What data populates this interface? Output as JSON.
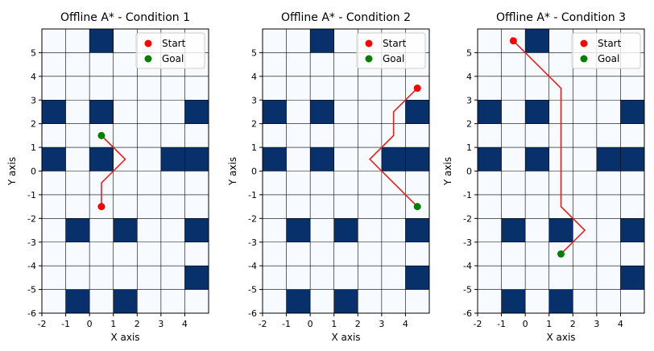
{
  "chart_data": [
    {
      "type": "heatmap",
      "title": "Offline A* - Condition 1",
      "xlabel": "X axis",
      "ylabel": "Y axis",
      "xlim": [
        -2,
        5
      ],
      "ylim": [
        -6,
        6
      ],
      "xticks": [
        "-2",
        "-1",
        "0",
        "1",
        "2",
        "3",
        "4"
      ],
      "yticks": [
        "-6",
        "-5",
        "-4",
        "-3",
        "-2",
        "-1",
        "0",
        "1",
        "2",
        "3",
        "4",
        "5"
      ],
      "obstacles": [
        [
          0,
          5
        ],
        [
          -2,
          2
        ],
        [
          0,
          2
        ],
        [
          4,
          2
        ],
        [
          -2,
          0
        ],
        [
          0,
          0
        ],
        [
          3,
          0
        ],
        [
          4,
          0
        ],
        [
          -1,
          -3
        ],
        [
          1,
          -3
        ],
        [
          4,
          -3
        ],
        [
          4,
          -5
        ],
        [
          -1,
          -6
        ],
        [
          1,
          -6
        ]
      ],
      "path": [
        [
          0.5,
          -1.5
        ],
        [
          0.5,
          -0.5
        ],
        [
          1.5,
          0.5
        ],
        [
          0.5,
          1.5
        ]
      ],
      "start": [
        0.5,
        -1.5
      ],
      "goal": [
        0.5,
        1.5
      ],
      "legend": [
        "Start",
        "Goal"
      ],
      "legend_position": "top-right",
      "grid": true
    },
    {
      "type": "heatmap",
      "title": "Offline A* - Condition 2",
      "xlabel": "X axis",
      "ylabel": "Y axis",
      "xlim": [
        -2,
        5
      ],
      "ylim": [
        -6,
        6
      ],
      "xticks": [
        "-2",
        "-1",
        "0",
        "1",
        "2",
        "3",
        "4"
      ],
      "yticks": [
        "-6",
        "-5",
        "-4",
        "-3",
        "-2",
        "-1",
        "0",
        "1",
        "2",
        "3",
        "4",
        "5"
      ],
      "obstacles": [
        [
          0,
          5
        ],
        [
          -2,
          2
        ],
        [
          0,
          2
        ],
        [
          4,
          2
        ],
        [
          -2,
          0
        ],
        [
          0,
          0
        ],
        [
          3,
          0
        ],
        [
          4,
          0
        ],
        [
          -1,
          -3
        ],
        [
          1,
          -3
        ],
        [
          4,
          -3
        ],
        [
          4,
          -5
        ],
        [
          -1,
          -6
        ],
        [
          1,
          -6
        ]
      ],
      "path": [
        [
          4.5,
          3.5
        ],
        [
          3.5,
          2.5
        ],
        [
          3.5,
          1.5
        ],
        [
          2.5,
          0.5
        ],
        [
          3.5,
          -0.5
        ],
        [
          4.5,
          -1.5
        ]
      ],
      "start": [
        4.5,
        3.5
      ],
      "goal": [
        4.5,
        -1.5
      ],
      "legend": [
        "Start",
        "Goal"
      ],
      "legend_position": "top-right",
      "grid": true
    },
    {
      "type": "heatmap",
      "title": "Offline A* - Condition 3",
      "xlabel": "X axis",
      "ylabel": "Y axis",
      "xlim": [
        -2,
        5
      ],
      "ylim": [
        -6,
        6
      ],
      "xticks": [
        "-2",
        "-1",
        "0",
        "1",
        "2",
        "3",
        "4"
      ],
      "yticks": [
        "-6",
        "-5",
        "-4",
        "-3",
        "-2",
        "-1",
        "0",
        "1",
        "2",
        "3",
        "4",
        "5"
      ],
      "obstacles": [
        [
          0,
          5
        ],
        [
          -2,
          2
        ],
        [
          0,
          2
        ],
        [
          4,
          2
        ],
        [
          -2,
          0
        ],
        [
          0,
          0
        ],
        [
          3,
          0
        ],
        [
          4,
          0
        ],
        [
          -1,
          -3
        ],
        [
          1,
          -3
        ],
        [
          4,
          -3
        ],
        [
          4,
          -5
        ],
        [
          -1,
          -6
        ],
        [
          1,
          -6
        ]
      ],
      "path": [
        [
          -0.5,
          5.5
        ],
        [
          1.5,
          3.5
        ],
        [
          1.5,
          -1.5
        ],
        [
          2.5,
          -2.5
        ],
        [
          1.5,
          -3.5
        ]
      ],
      "start": [
        -0.5,
        5.5
      ],
      "goal": [
        1.5,
        -3.5
      ],
      "legend": [
        "Start",
        "Goal"
      ],
      "legend_position": "top-right",
      "grid": true
    }
  ],
  "colors": {
    "obstacle": "#08306b",
    "free": "#f7fbff",
    "path": "#e8201a",
    "start": "#ff0000",
    "goal": "#008000",
    "grid": "#000000"
  }
}
